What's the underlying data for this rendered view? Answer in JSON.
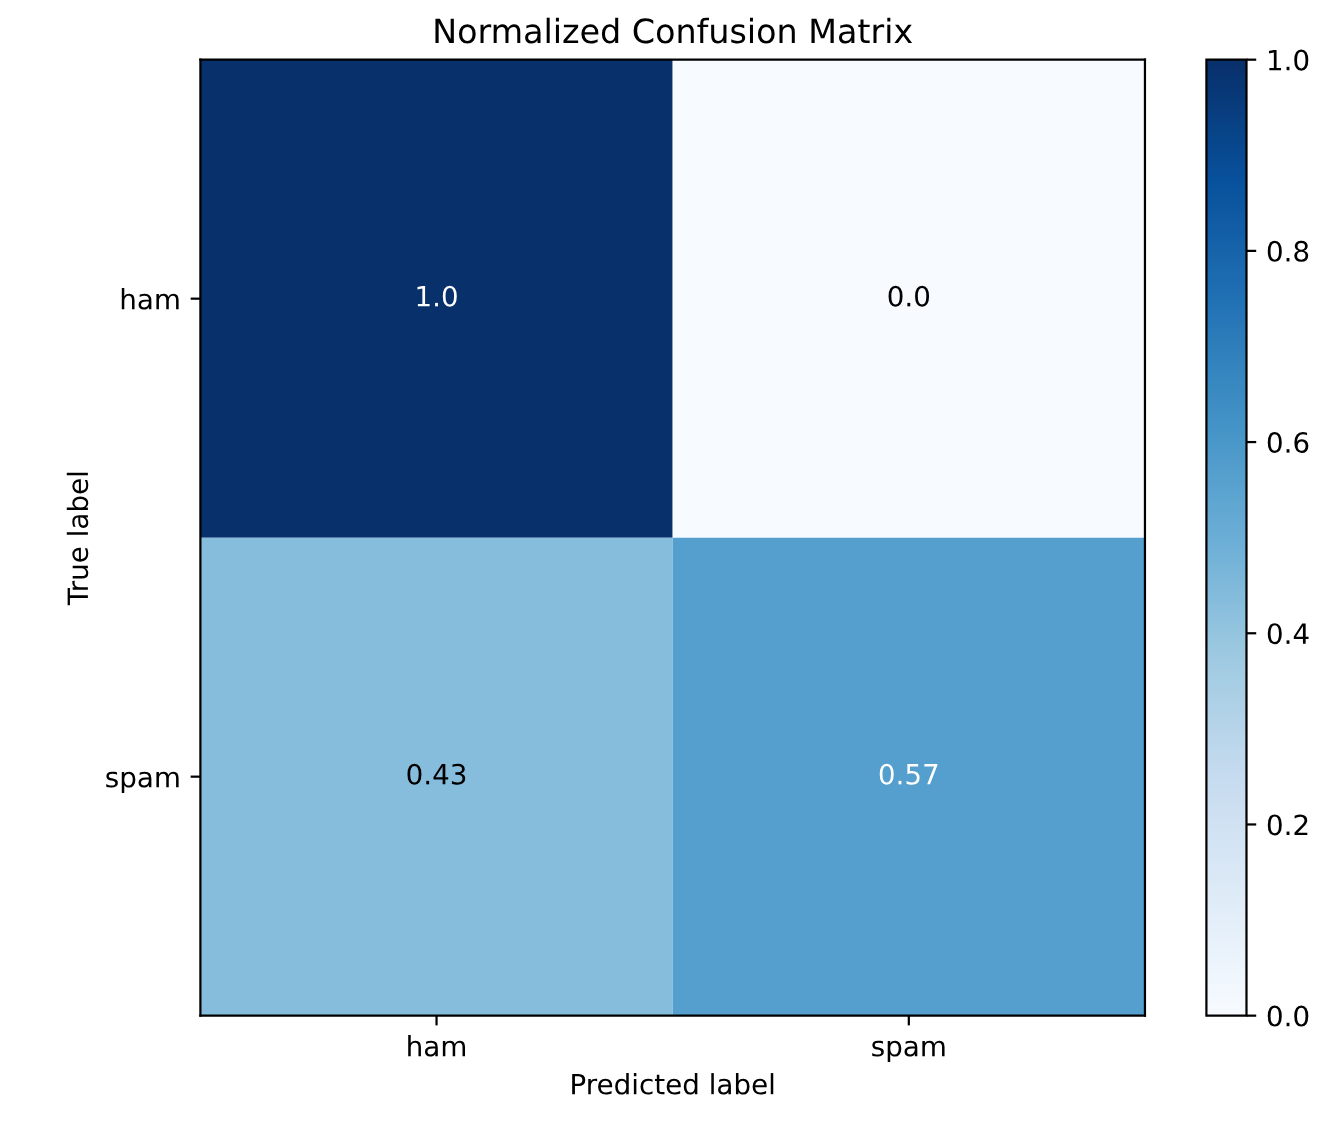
{
  "chart_data": {
    "type": "heatmap",
    "title": "Normalized Confusion Matrix",
    "xlabel": "Predicted label",
    "ylabel": "True label",
    "categories": [
      "ham",
      "spam"
    ],
    "y_categories": [
      "ham",
      "spam"
    ],
    "cells": [
      [
        1.0,
        0.0
      ],
      [
        0.43,
        0.57
      ]
    ],
    "cell_labels": [
      [
        "1.0",
        "0.0"
      ],
      [
        "0.43",
        "0.57"
      ]
    ],
    "clim": [
      0,
      1
    ],
    "cticks": [
      {
        "value": 0,
        "label": "0.0"
      },
      0.2,
      0.4,
      0.6,
      0.8,
      {
        "value": 1,
        "label": "1.0"
      }
    ]
  }
}
